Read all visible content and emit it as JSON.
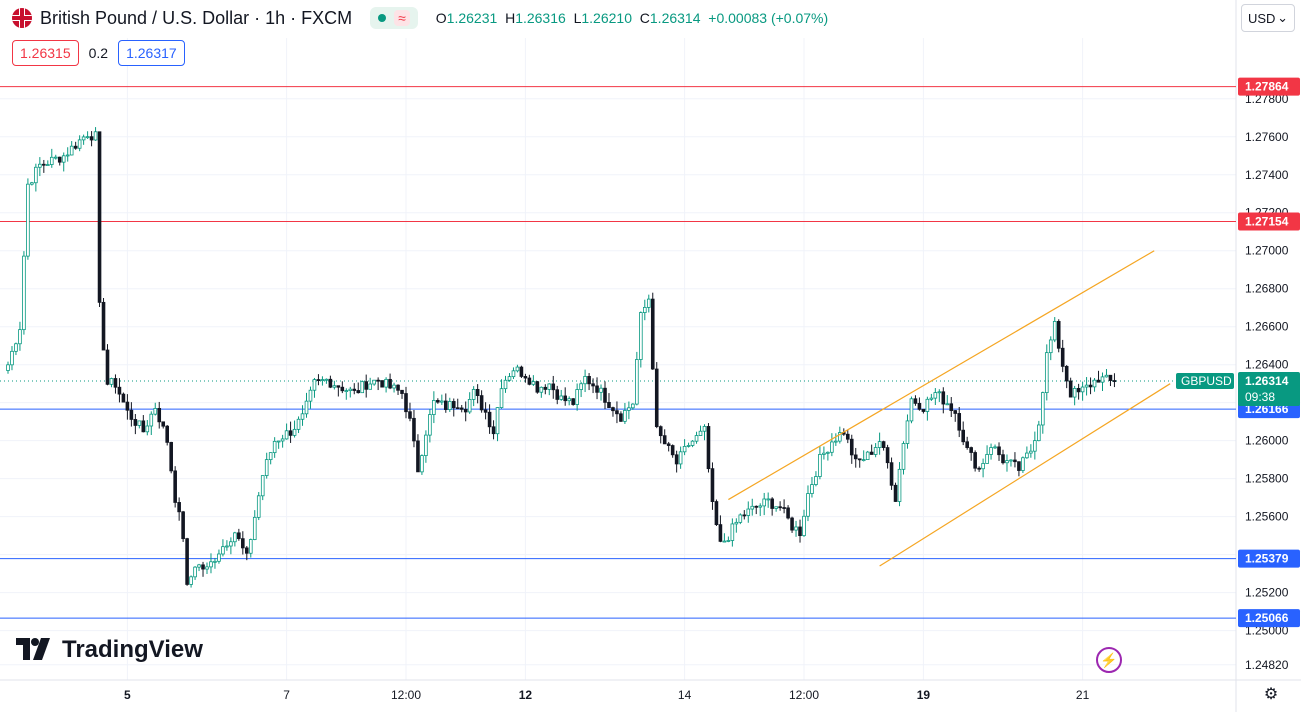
{
  "header": {
    "title": "British Pound / U.S. Dollar · 1h · FXCM",
    "ohlc": {
      "open_label": "O",
      "open": "1.26231",
      "high_label": "H",
      "high": "1.26316",
      "low_label": "L",
      "low": "1.26210",
      "close_label": "C",
      "close": "1.26314",
      "change": "+0.00083 (+0.07%)"
    },
    "wave_glyph": "≈"
  },
  "quote": {
    "sell": "1.26315",
    "spread": "0.2",
    "buy": "1.26317"
  },
  "currency": {
    "label": "USD",
    "chevron": "⌄"
  },
  "branding": {
    "name": "TradingView",
    "bolt_glyph": "⚡",
    "settings_glyph": "⚙"
  },
  "chart_data": {
    "type": "candlestick",
    "symbol": "GBPUSD",
    "ylim": [
      1.2474,
      1.2812
    ],
    "x_ticks": [
      {
        "label": "5",
        "bar": 30
      },
      {
        "label": "7",
        "bar": 70
      },
      {
        "label": "12:00",
        "bar": 100
      },
      {
        "label": "12",
        "bar": 130
      },
      {
        "label": "14",
        "bar": 170
      },
      {
        "label": "12:00",
        "bar": 200
      },
      {
        "label": "19",
        "bar": 230
      },
      {
        "label": "21",
        "bar": 270
      }
    ],
    "y_ticks": [
      "1.27800",
      "1.27600",
      "1.27400",
      "1.27200",
      "1.27000",
      "1.26800",
      "1.26600",
      "1.26400",
      "1.26200",
      "1.26000",
      "1.25800",
      "1.25600",
      "1.25400",
      "1.25200",
      "1.25000",
      "1.24820"
    ],
    "y_tick_values": [
      1.278,
      1.276,
      1.274,
      1.272,
      1.27,
      1.268,
      1.266,
      1.264,
      1.262,
      1.26,
      1.258,
      1.256,
      1.254,
      1.252,
      1.25,
      1.2482
    ],
    "horizontal_levels": [
      {
        "value": 1.27864,
        "label": "1.27864",
        "color": "#f23645"
      },
      {
        "value": 1.27154,
        "label": "1.27154",
        "color": "#f23645"
      },
      {
        "value": 1.26166,
        "label": "1.26166",
        "color": "#2962ff"
      },
      {
        "value": 1.25379,
        "label": "1.25379",
        "color": "#2962ff"
      },
      {
        "value": 1.25066,
        "label": "1.25066",
        "color": "#2962ff"
      }
    ],
    "last_price": {
      "value": 1.26314,
      "label": "1.26314",
      "countdown": "09:38"
    },
    "channel": [
      {
        "from": {
          "bar": 181,
          "value": 1.2569
        },
        "to": {
          "bar": 288,
          "value": 1.27
        }
      },
      {
        "from": {
          "bar": 219,
          "value": 1.2534
        },
        "to": {
          "bar": 292,
          "value": 1.263
        }
      }
    ],
    "colors": {
      "up": "#089981",
      "down": "#131722",
      "channel": "#f5a623"
    },
    "anchors": [
      [
        0,
        1.264
      ],
      [
        3,
        1.266
      ],
      [
        5,
        1.2735
      ],
      [
        8,
        1.2745
      ],
      [
        14,
        1.275
      ],
      [
        20,
        1.2762
      ],
      [
        22,
        1.276
      ],
      [
        23,
        1.267
      ],
      [
        25,
        1.263
      ],
      [
        27,
        1.263
      ],
      [
        30,
        1.2615
      ],
      [
        34,
        1.2605
      ],
      [
        37,
        1.2618
      ],
      [
        40,
        1.26
      ],
      [
        42,
        1.257
      ],
      [
        44,
        1.255
      ],
      [
        45,
        1.2522
      ],
      [
        47,
        1.2535
      ],
      [
        50,
        1.2532
      ],
      [
        53,
        1.2542
      ],
      [
        57,
        1.2552
      ],
      [
        60,
        1.2538
      ],
      [
        64,
        1.2582
      ],
      [
        67,
        1.26
      ],
      [
        71,
        1.2605
      ],
      [
        74,
        1.2612
      ],
      [
        77,
        1.263
      ],
      [
        80,
        1.2632
      ],
      [
        84,
        1.2628
      ],
      [
        87,
        1.2625
      ],
      [
        90,
        1.263
      ],
      [
        93,
        1.2632
      ],
      [
        96,
        1.2628
      ],
      [
        99,
        1.2625
      ],
      [
        101,
        1.261
      ],
      [
        103,
        1.2585
      ],
      [
        105,
        1.2605
      ],
      [
        107,
        1.262
      ],
      [
        110,
        1.2618
      ],
      [
        113,
        1.262
      ],
      [
        115,
        1.2618
      ],
      [
        117,
        1.2625
      ],
      [
        120,
        1.2615
      ],
      [
        122,
        1.2605
      ],
      [
        124,
        1.263
      ],
      [
        127,
        1.2638
      ],
      [
        130,
        1.2635
      ],
      [
        133,
        1.2628
      ],
      [
        136,
        1.263
      ],
      [
        139,
        1.2622
      ],
      [
        142,
        1.262
      ],
      [
        145,
        1.2633
      ],
      [
        148,
        1.2628
      ],
      [
        151,
        1.262
      ],
      [
        154,
        1.2613
      ],
      [
        157,
        1.262
      ],
      [
        159,
        1.2665
      ],
      [
        161,
        1.2675
      ],
      [
        163,
        1.2605
      ],
      [
        166,
        1.2595
      ],
      [
        168,
        1.2588
      ],
      [
        171,
        1.2598
      ],
      [
        175,
        1.2605
      ],
      [
        177,
        1.2565
      ],
      [
        179,
        1.2545
      ],
      [
        181,
        1.255
      ],
      [
        184,
        1.256
      ],
      [
        188,
        1.2565
      ],
      [
        191,
        1.2568
      ],
      [
        194,
        1.2565
      ],
      [
        197,
        1.2555
      ],
      [
        199,
        1.2552
      ],
      [
        201,
        1.2572
      ],
      [
        204,
        1.259
      ],
      [
        207,
        1.26
      ],
      [
        210,
        1.2605
      ],
      [
        213,
        1.2588
      ],
      [
        216,
        1.2592
      ],
      [
        219,
        1.26
      ],
      [
        221,
        1.2588
      ],
      [
        223,
        1.257
      ],
      [
        225,
        1.26
      ],
      [
        227,
        1.2622
      ],
      [
        230,
        1.2618
      ],
      [
        233,
        1.2625
      ],
      [
        236,
        1.262
      ],
      [
        238,
        1.2615
      ],
      [
        241,
        1.2595
      ],
      [
        244,
        1.2585
      ],
      [
        247,
        1.2598
      ],
      [
        250,
        1.259
      ],
      [
        254,
        1.2585
      ],
      [
        257,
        1.2595
      ],
      [
        259,
        1.261
      ],
      [
        261,
        1.2645
      ],
      [
        263,
        1.266
      ],
      [
        265,
        1.264
      ],
      [
        267,
        1.2625
      ],
      [
        269,
        1.2625
      ],
      [
        271,
        1.2628
      ],
      [
        274,
        1.2633
      ],
      [
        277,
        1.2631
      ],
      [
        278,
        1.26314
      ]
    ]
  }
}
